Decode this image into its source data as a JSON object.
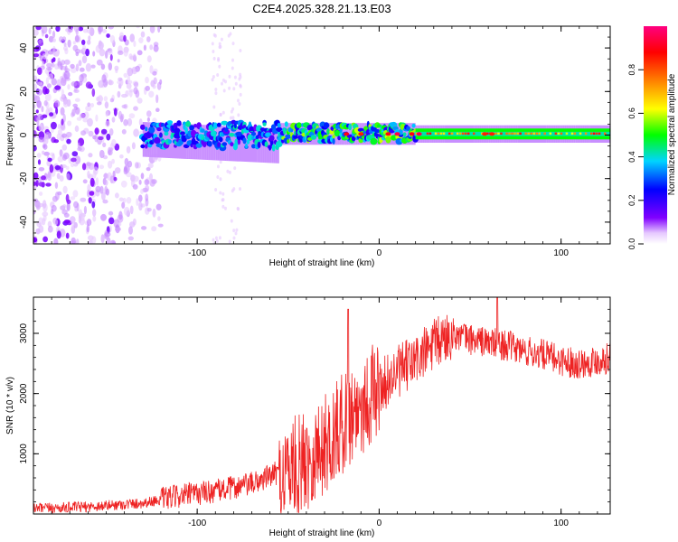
{
  "title": "C2E4.2025.328.21.13.E03",
  "chart_data": [
    {
      "type": "heatmap",
      "xlabel": "Height of straight line (km)",
      "ylabel": "Frequency (Hz)",
      "xlim": [
        -190,
        127
      ],
      "ylim": [
        -50,
        50
      ],
      "xticks": [
        -100,
        0,
        100
      ],
      "yticks": [
        -40,
        -20,
        0,
        20,
        40
      ],
      "colorbar": {
        "label": "Normalized spectral amplitude",
        "range": [
          0,
          1
        ],
        "ticks": [
          0.0,
          0.2,
          0.4,
          0.6,
          0.8
        ],
        "colors": [
          "#ffffff",
          "#e6c8ff",
          "#8000ff",
          "#0000ff",
          "#00d4ff",
          "#00ff00",
          "#ffff00",
          "#ff8000",
          "#ff0000",
          "#ff0080"
        ]
      },
      "regions": [
        {
          "name": "diffuse noise",
          "x_range": [
            -190,
            -120
          ],
          "freq_range": [
            -50,
            50
          ],
          "amplitude": 0.05
        },
        {
          "name": "band onset",
          "x_range": [
            -130,
            -55
          ],
          "freq_center": 0,
          "freq_halfwidth": 6,
          "amplitude": 0.3
        },
        {
          "name": "band",
          "x_range": [
            -55,
            20
          ],
          "freq_center": 1,
          "freq_halfwidth": 4,
          "amplitude": 0.5
        },
        {
          "name": "stable line",
          "x_range": [
            20,
            127
          ],
          "freq_center": 0.5,
          "freq_halfwidth": 3,
          "amplitude": 0.8
        }
      ]
    },
    {
      "type": "line",
      "xlabel": "Height of straight line (km)",
      "ylabel": "SNR (10 * v/v)",
      "xlim": [
        -190,
        127
      ],
      "ylim": [
        0,
        3600
      ],
      "xticks": [
        -100,
        0,
        100
      ],
      "yticks": [
        1000,
        2000,
        3000
      ],
      "series": [
        {
          "name": "SNR",
          "color": "#ee2222",
          "x": [
            -190,
            -160,
            -130,
            -110,
            -90,
            -70,
            -55,
            -45,
            -35,
            -25,
            -18,
            -10,
            -5,
            0,
            10,
            20,
            30,
            40,
            50,
            60,
            70,
            80,
            90,
            100,
            110,
            120,
            127
          ],
          "y": [
            90,
            120,
            180,
            300,
            380,
            500,
            700,
            800,
            1000,
            1300,
            1600,
            1800,
            1950,
            2100,
            2350,
            2550,
            2800,
            3000,
            2900,
            2850,
            2800,
            2700,
            2650,
            2550,
            2500,
            2550,
            2600
          ],
          "peaks": [
            [
              -17,
              3400
            ],
            [
              65,
              3600
            ]
          ]
        }
      ]
    }
  ]
}
